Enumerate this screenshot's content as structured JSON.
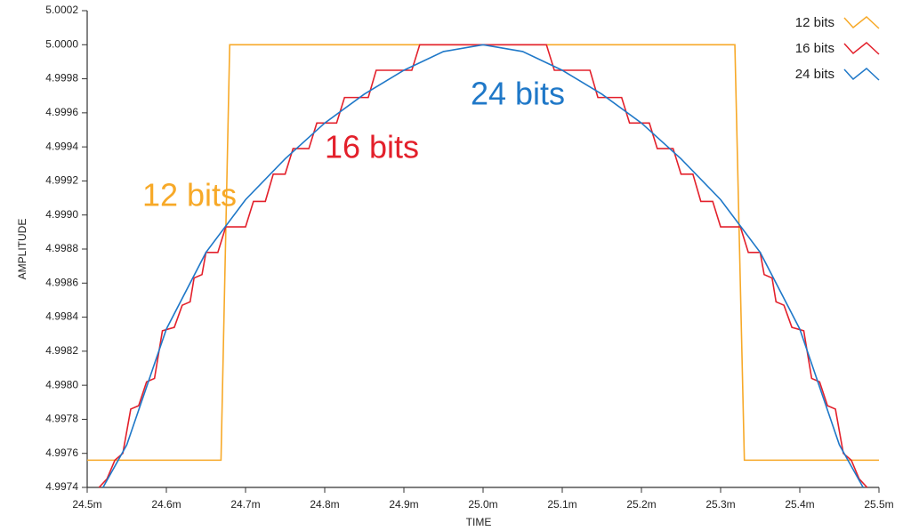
{
  "chart_data": {
    "type": "line",
    "x_label": "TIME",
    "y_label": "AMPLITUDE",
    "legend": "top-right",
    "xlim": [
      24.5,
      25.5
    ],
    "xticks": [
      {
        "value": 24.5,
        "label": "24.5m"
      },
      {
        "value": 24.6,
        "label": "24.6m"
      },
      {
        "value": 24.7,
        "label": "24.7m"
      },
      {
        "value": 24.8,
        "label": "24.8m"
      },
      {
        "value": 24.9,
        "label": "24.9m"
      },
      {
        "value": 25.0,
        "label": "25.0m"
      },
      {
        "value": 25.1,
        "label": "25.1m"
      },
      {
        "value": 25.2,
        "label": "25.2m"
      },
      {
        "value": 25.3,
        "label": "25.3m"
      },
      {
        "value": 25.4,
        "label": "25.4m"
      },
      {
        "value": 25.5,
        "label": "25.5m"
      }
    ],
    "ylim": [
      4.9974,
      5.0002
    ],
    "yticks": [
      4.9974,
      4.9976,
      4.9978,
      {
        "value": 4.998,
        "label": "4.9980"
      },
      4.9982,
      4.9984,
      4.9986,
      4.9988,
      {
        "value": 4.999,
        "label": "4.9990"
      },
      4.9992,
      4.9994,
      4.9996,
      4.9998,
      {
        "value": 5.0,
        "label": "5.0000"
      },
      5.0002
    ],
    "series": [
      {
        "name": "12 bits",
        "color": "#f7a928",
        "x": [
          24.5,
          24.669,
          24.68,
          25.318,
          25.33,
          25.5
        ],
        "values": [
          4.99756,
          4.99756,
          5.0,
          5.0,
          4.99756,
          4.99756
        ]
      },
      {
        "name": "16 bits",
        "color": "#e3202b",
        "x": [
          24.515,
          24.525,
          24.535,
          24.545,
          24.555,
          24.565,
          24.575,
          24.585,
          24.595,
          24.61,
          24.62,
          24.63,
          24.635,
          24.645,
          24.65,
          24.665,
          24.675,
          24.7,
          24.71,
          24.725,
          24.735,
          24.75,
          24.76,
          24.78,
          24.79,
          24.815,
          24.825,
          24.855,
          24.865,
          24.91,
          24.92,
          25.08,
          25.09,
          25.135,
          25.145,
          25.175,
          25.185,
          25.21,
          25.22,
          25.24,
          25.25,
          25.265,
          25.275,
          25.29,
          25.3,
          25.325,
          25.335,
          25.35,
          25.355,
          25.365,
          25.37,
          25.38,
          25.39,
          25.405,
          25.415,
          25.425,
          25.435,
          25.445,
          25.455,
          25.465,
          25.475,
          25.485
        ],
        "values": [
          4.9974,
          4.99745,
          4.99756,
          4.9976,
          4.99786,
          4.99788,
          4.99802,
          4.99804,
          4.99832,
          4.99834,
          4.99847,
          4.99849,
          4.99863,
          4.99865,
          4.99878,
          4.99878,
          4.99893,
          4.99893,
          4.99908,
          4.99908,
          4.99924,
          4.99924,
          4.99939,
          4.99939,
          4.99954,
          4.99954,
          4.99969,
          4.99969,
          4.99985,
          4.99985,
          5.0,
          5.0,
          4.99985,
          4.99985,
          4.99969,
          4.99969,
          4.99954,
          4.99954,
          4.99939,
          4.99939,
          4.99924,
          4.99924,
          4.99908,
          4.99908,
          4.99893,
          4.99893,
          4.99878,
          4.99878,
          4.99865,
          4.99863,
          4.99849,
          4.99847,
          4.99834,
          4.99832,
          4.99804,
          4.99802,
          4.99788,
          4.99786,
          4.9976,
          4.99756,
          4.99745,
          4.9974
        ]
      },
      {
        "name": "24 bits",
        "color": "#1f78c8",
        "x": [
          24.52,
          24.55,
          24.6,
          24.65,
          24.7,
          24.75,
          24.8,
          24.85,
          24.9,
          24.95,
          25.0,
          25.05,
          25.1,
          25.15,
          25.2,
          25.25,
          25.3,
          25.35,
          25.4,
          25.45,
          25.48
        ],
        "values": [
          4.9974,
          4.99765,
          4.99833,
          4.99878,
          4.99909,
          4.99933,
          4.99954,
          4.99971,
          4.99985,
          4.99996,
          5.0,
          4.99996,
          4.99985,
          4.99971,
          4.99954,
          4.99933,
          4.99909,
          4.99878,
          4.99833,
          4.99765,
          4.9974
        ]
      }
    ]
  }
}
